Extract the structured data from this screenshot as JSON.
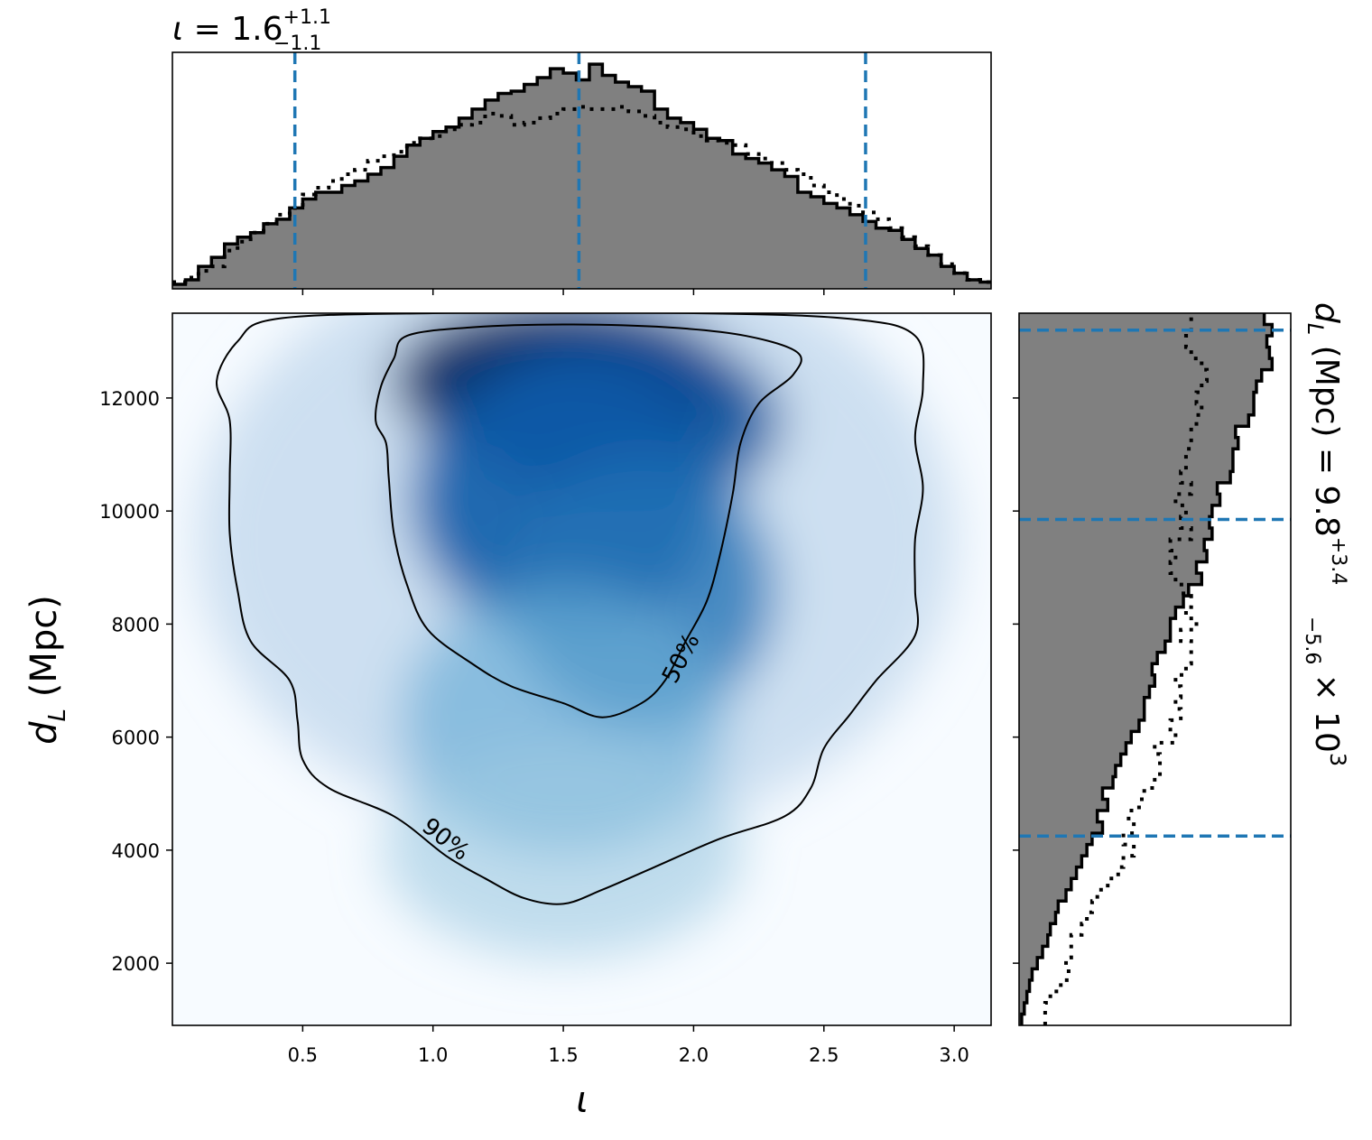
{
  "chart_data": {
    "type": "corner",
    "panels": [
      {
        "name": "marginal-iota",
        "type": "step-histogram",
        "x_param": "ι",
        "xlim": [
          0.0,
          3.14159
        ],
        "title": {
          "param": "ι",
          "median": "1.6",
          "plus": "+1.1",
          "minus": "−1.1"
        },
        "quantile_lines": [
          0.47,
          1.56,
          2.66
        ],
        "bin_edges": [
          0.0,
          0.05,
          0.1,
          0.15,
          0.2,
          0.25,
          0.3,
          0.35,
          0.4,
          0.45,
          0.5,
          0.55,
          0.6,
          0.65,
          0.7,
          0.75,
          0.8,
          0.85,
          0.9,
          0.95,
          1.0,
          1.05,
          1.1,
          1.15,
          1.2,
          1.25,
          1.3,
          1.35,
          1.4,
          1.45,
          1.5,
          1.55,
          1.6,
          1.65,
          1.7,
          1.75,
          1.8,
          1.85,
          1.9,
          1.95,
          2.0,
          2.05,
          2.1,
          2.15,
          2.2,
          2.25,
          2.3,
          2.35,
          2.4,
          2.45,
          2.5,
          2.55,
          2.6,
          2.65,
          2.7,
          2.75,
          2.8,
          2.85,
          2.9,
          2.95,
          3.0,
          3.05,
          3.1,
          3.14159
        ],
        "posterior": [
          0.02,
          0.04,
          0.1,
          0.14,
          0.2,
          0.23,
          0.25,
          0.29,
          0.31,
          0.36,
          0.4,
          0.43,
          0.43,
          0.46,
          0.48,
          0.51,
          0.54,
          0.59,
          0.64,
          0.67,
          0.7,
          0.72,
          0.76,
          0.8,
          0.84,
          0.87,
          0.88,
          0.91,
          0.94,
          0.98,
          0.96,
          0.93,
          1.0,
          0.95,
          0.92,
          0.9,
          0.88,
          0.8,
          0.76,
          0.74,
          0.71,
          0.67,
          0.66,
          0.6,
          0.58,
          0.56,
          0.53,
          0.5,
          0.43,
          0.41,
          0.38,
          0.36,
          0.33,
          0.3,
          0.27,
          0.26,
          0.22,
          0.18,
          0.15,
          0.1,
          0.07,
          0.04,
          0.03
        ],
        "prior": [
          0.03,
          0.05,
          0.08,
          0.1,
          0.17,
          0.21,
          0.25,
          0.29,
          0.33,
          0.36,
          0.42,
          0.45,
          0.48,
          0.51,
          0.53,
          0.57,
          0.59,
          0.61,
          0.65,
          0.67,
          0.68,
          0.71,
          0.73,
          0.74,
          0.78,
          0.77,
          0.73,
          0.74,
          0.76,
          0.78,
          0.8,
          0.81,
          0.8,
          0.8,
          0.81,
          0.79,
          0.77,
          0.74,
          0.72,
          0.71,
          0.68,
          0.66,
          0.65,
          0.64,
          0.6,
          0.58,
          0.56,
          0.53,
          0.51,
          0.46,
          0.43,
          0.4,
          0.37,
          0.34,
          0.31,
          0.27,
          0.23,
          0.19,
          0.15,
          0.11,
          0.07,
          0.04,
          0.03
        ]
      },
      {
        "name": "joint-iota-dL",
        "type": "density-contour",
        "xlabel": "ι",
        "ylabel": "$d_L$ (Mpc)",
        "xlim": [
          0.0,
          3.14159
        ],
        "ylim": [
          900,
          13500
        ],
        "xticks": [
          "0.5",
          "1.0",
          "1.5",
          "2.0",
          "2.5",
          "3.0"
        ],
        "yticks": [
          "2000",
          "4000",
          "6000",
          "8000",
          "10000",
          "12000"
        ],
        "colormap": "Blues",
        "density_peaks": [
          {
            "x": 1.5,
            "y": 12300,
            "weight": 1.0
          },
          {
            "x": 1.75,
            "y": 11600,
            "weight": 0.7
          },
          {
            "x": 1.5,
            "y": 10200,
            "weight": 0.75
          },
          {
            "x": 1.8,
            "y": 8600,
            "weight": 0.5
          },
          {
            "x": 1.5,
            "y": 6300,
            "weight": 0.3
          },
          {
            "x": 1.5,
            "y": 4000,
            "weight": 0.15
          }
        ],
        "contours": [
          {
            "label": "50%",
            "label_position": [
              1.95,
              7400
            ],
            "path": [
              [
                2.05,
                8400
              ],
              [
                1.97,
                7700
              ],
              [
                1.89,
                7000
              ],
              [
                1.8,
                6600
              ],
              [
                1.65,
                6350
              ],
              [
                1.5,
                6600
              ],
              [
                1.3,
                6900
              ],
              [
                1.15,
                7300
              ],
              [
                0.98,
                7900
              ],
              [
                0.9,
                8700
              ],
              [
                0.85,
                9600
              ],
              [
                0.83,
                10600
              ],
              [
                0.82,
                11200
              ],
              [
                0.78,
                11600
              ],
              [
                0.8,
                12200
              ],
              [
                0.85,
                12700
              ],
              [
                0.9,
                13100
              ],
              [
                1.15,
                13250
              ],
              [
                1.5,
                13300
              ],
              [
                1.9,
                13250
              ],
              [
                2.2,
                13100
              ],
              [
                2.4,
                12800
              ],
              [
                2.38,
                12400
              ],
              [
                2.25,
                11900
              ],
              [
                2.18,
                11200
              ],
              [
                2.15,
                10300
              ],
              [
                2.1,
                9200
              ],
              [
                2.05,
                8400
              ]
            ]
          },
          {
            "label": "90%",
            "label_position": [
              1.05,
              4200
            ],
            "path": [
              [
                0.85,
                4600
              ],
              [
                0.6,
                5100
              ],
              [
                0.5,
                5600
              ],
              [
                0.48,
                6300
              ],
              [
                0.45,
                7000
              ],
              [
                0.3,
                7700
              ],
              [
                0.25,
                8600
              ],
              [
                0.22,
                9600
              ],
              [
                0.22,
                10600
              ],
              [
                0.22,
                11600
              ],
              [
                0.17,
                12300
              ],
              [
                0.25,
                13000
              ],
              [
                0.4,
                13400
              ],
              [
                1.0,
                13500
              ],
              [
                2.0,
                13500
              ],
              [
                2.6,
                13400
              ],
              [
                2.85,
                13100
              ],
              [
                2.88,
                12200
              ],
              [
                2.85,
                11300
              ],
              [
                2.88,
                10400
              ],
              [
                2.85,
                9500
              ],
              [
                2.85,
                8600
              ],
              [
                2.85,
                7800
              ],
              [
                2.7,
                7000
              ],
              [
                2.6,
                6400
              ],
              [
                2.5,
                5800
              ],
              [
                2.45,
                5100
              ],
              [
                2.35,
                4600
              ],
              [
                2.1,
                4200
              ],
              [
                1.85,
                3700
              ],
              [
                1.65,
                3300
              ],
              [
                1.5,
                3050
              ],
              [
                1.35,
                3150
              ],
              [
                1.2,
                3500
              ],
              [
                1.05,
                3900
              ],
              [
                0.85,
                4600
              ]
            ]
          }
        ]
      },
      {
        "name": "marginal-dL",
        "type": "step-histogram",
        "orientation": "horizontal",
        "y_param": "d_L",
        "ylim": [
          900,
          13500
        ],
        "title": {
          "param": "$d_L$ (Mpc)",
          "median": "9.8",
          "plus": "+3.4",
          "minus": "−5.6",
          "scale": "× 10",
          "exponent": "3"
        },
        "quantile_lines": [
          4250,
          9850,
          13200
        ],
        "bin_edges": [
          900,
          1100,
          1300,
          1500,
          1700,
          1900,
          2100,
          2300,
          2500,
          2700,
          2900,
          3100,
          3300,
          3500,
          3700,
          3900,
          4100,
          4300,
          4500,
          4700,
          4900,
          5100,
          5300,
          5500,
          5700,
          5900,
          6100,
          6300,
          6500,
          6700,
          6900,
          7100,
          7300,
          7500,
          7700,
          7900,
          8100,
          8300,
          8500,
          8700,
          8900,
          9100,
          9300,
          9500,
          9700,
          9900,
          10100,
          10300,
          10500,
          10700,
          10900,
          11100,
          11300,
          11500,
          11700,
          11900,
          12100,
          12300,
          12500,
          12700,
          12900,
          13100,
          13300,
          13500
        ],
        "posterior": [
          0.01,
          0.02,
          0.03,
          0.04,
          0.05,
          0.07,
          0.09,
          0.11,
          0.12,
          0.14,
          0.15,
          0.18,
          0.2,
          0.22,
          0.24,
          0.26,
          0.28,
          0.32,
          0.3,
          0.34,
          0.32,
          0.36,
          0.37,
          0.39,
          0.41,
          0.43,
          0.46,
          0.48,
          0.48,
          0.5,
          0.52,
          0.51,
          0.53,
          0.56,
          0.58,
          0.58,
          0.6,
          0.63,
          0.65,
          0.7,
          0.68,
          0.72,
          0.71,
          0.74,
          0.73,
          0.74,
          0.77,
          0.76,
          0.81,
          0.82,
          0.82,
          0.84,
          0.83,
          0.88,
          0.9,
          0.9,
          0.91,
          0.93,
          0.97,
          0.96,
          0.95,
          0.97,
          0.94
        ],
        "prior": [
          0.1,
          0.1,
          0.12,
          0.16,
          0.19,
          0.18,
          0.2,
          0.2,
          0.24,
          0.26,
          0.28,
          0.3,
          0.34,
          0.38,
          0.4,
          0.44,
          0.4,
          0.44,
          0.42,
          0.46,
          0.48,
          0.52,
          0.54,
          0.54,
          0.52,
          0.6,
          0.58,
          0.62,
          0.6,
          0.62,
          0.6,
          0.64,
          0.66,
          0.66,
          0.62,
          0.68,
          0.64,
          0.66,
          0.63,
          0.6,
          0.58,
          0.6,
          0.58,
          0.66,
          0.62,
          0.64,
          0.6,
          0.66,
          0.62,
          0.64,
          0.64,
          0.66,
          0.66,
          0.68,
          0.7,
          0.68,
          0.7,
          0.72,
          0.7,
          0.66,
          0.64,
          0.66,
          0.66
        ]
      }
    ],
    "colors": {
      "posterior_fill": "#808080",
      "step_line": "#000000",
      "quantile_line": "#1f77b4",
      "contour_line": "#000000"
    }
  }
}
